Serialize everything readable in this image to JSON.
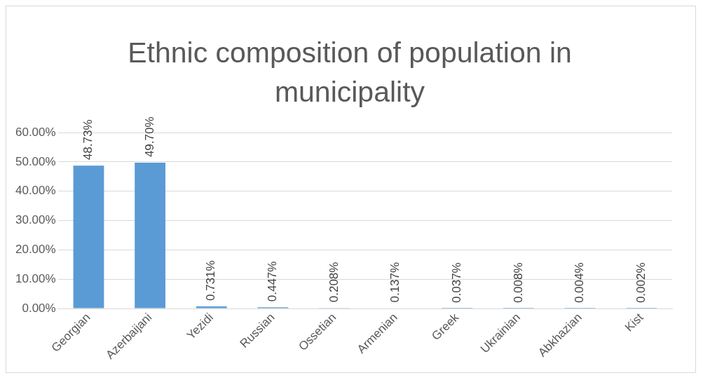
{
  "chart_data": {
    "type": "bar",
    "title": "Ethnic composition of population in municipality",
    "categories": [
      "Georgian",
      "Azerbaijani",
      "Yezidi",
      "Russian",
      "Ossetian",
      "Armenian",
      "Greek",
      "Ukrainian",
      "Abkhazian",
      "Kist"
    ],
    "values": [
      48.73,
      49.7,
      0.731,
      0.447,
      0.208,
      0.137,
      0.037,
      0.008,
      0.004,
      0.002
    ],
    "value_labels": [
      "48.73%",
      "49.70%",
      "0.731%",
      "0.447%",
      "0.208%",
      "0.137%",
      "0.037%",
      "0.008%",
      "0.004%",
      "0.002%"
    ],
    "color": "#5b9bd5",
    "ylim": [
      0,
      60
    ],
    "yticks": [
      {
        "value": 0,
        "label": "0.00%"
      },
      {
        "value": 10,
        "label": "10.00%"
      },
      {
        "value": 20,
        "label": "20.00%"
      },
      {
        "value": 30,
        "label": "30.00%"
      },
      {
        "value": 40,
        "label": "40.00%"
      },
      {
        "value": 50,
        "label": "50.00%"
      },
      {
        "value": 60,
        "label": "60.00%"
      }
    ],
    "grid": "y"
  }
}
